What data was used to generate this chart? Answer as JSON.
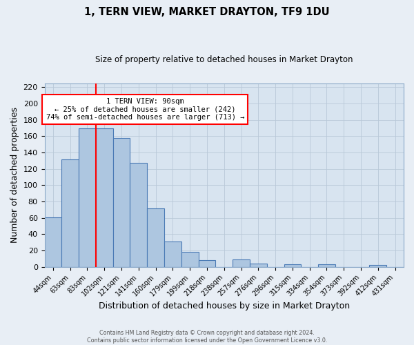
{
  "title": "1, TERN VIEW, MARKET DRAYTON, TF9 1DU",
  "subtitle": "Size of property relative to detached houses in Market Drayton",
  "xlabel": "Distribution of detached houses by size in Market Drayton",
  "ylabel": "Number of detached properties",
  "footer_line1": "Contains HM Land Registry data © Crown copyright and database right 2024.",
  "footer_line2": "Contains public sector information licensed under the Open Government Licence v3.0.",
  "bin_labels": [
    "44sqm",
    "63sqm",
    "83sqm",
    "102sqm",
    "121sqm",
    "141sqm",
    "160sqm",
    "179sqm",
    "199sqm",
    "218sqm",
    "238sqm",
    "257sqm",
    "276sqm",
    "296sqm",
    "315sqm",
    "334sqm",
    "354sqm",
    "373sqm",
    "392sqm",
    "412sqm",
    "431sqm"
  ],
  "bar_values": [
    61,
    132,
    170,
    170,
    158,
    127,
    72,
    31,
    18,
    8,
    0,
    9,
    4,
    0,
    3,
    0,
    3,
    0,
    0,
    2,
    0
  ],
  "bar_color": "#adc6e0",
  "bar_edge_color": "#4a7ab5",
  "ylim": [
    0,
    225
  ],
  "yticks": [
    0,
    20,
    40,
    60,
    80,
    100,
    120,
    140,
    160,
    180,
    200,
    220
  ],
  "red_line_bin_index": 2,
  "annotation_title": "1 TERN VIEW: 90sqm",
  "annotation_line2": "← 25% of detached houses are smaller (242)",
  "annotation_line3": "74% of semi-detached houses are larger (713) →",
  "background_color": "#e8eef5",
  "plot_background_color": "#d8e4f0",
  "grid_color": "#b8c8d8"
}
